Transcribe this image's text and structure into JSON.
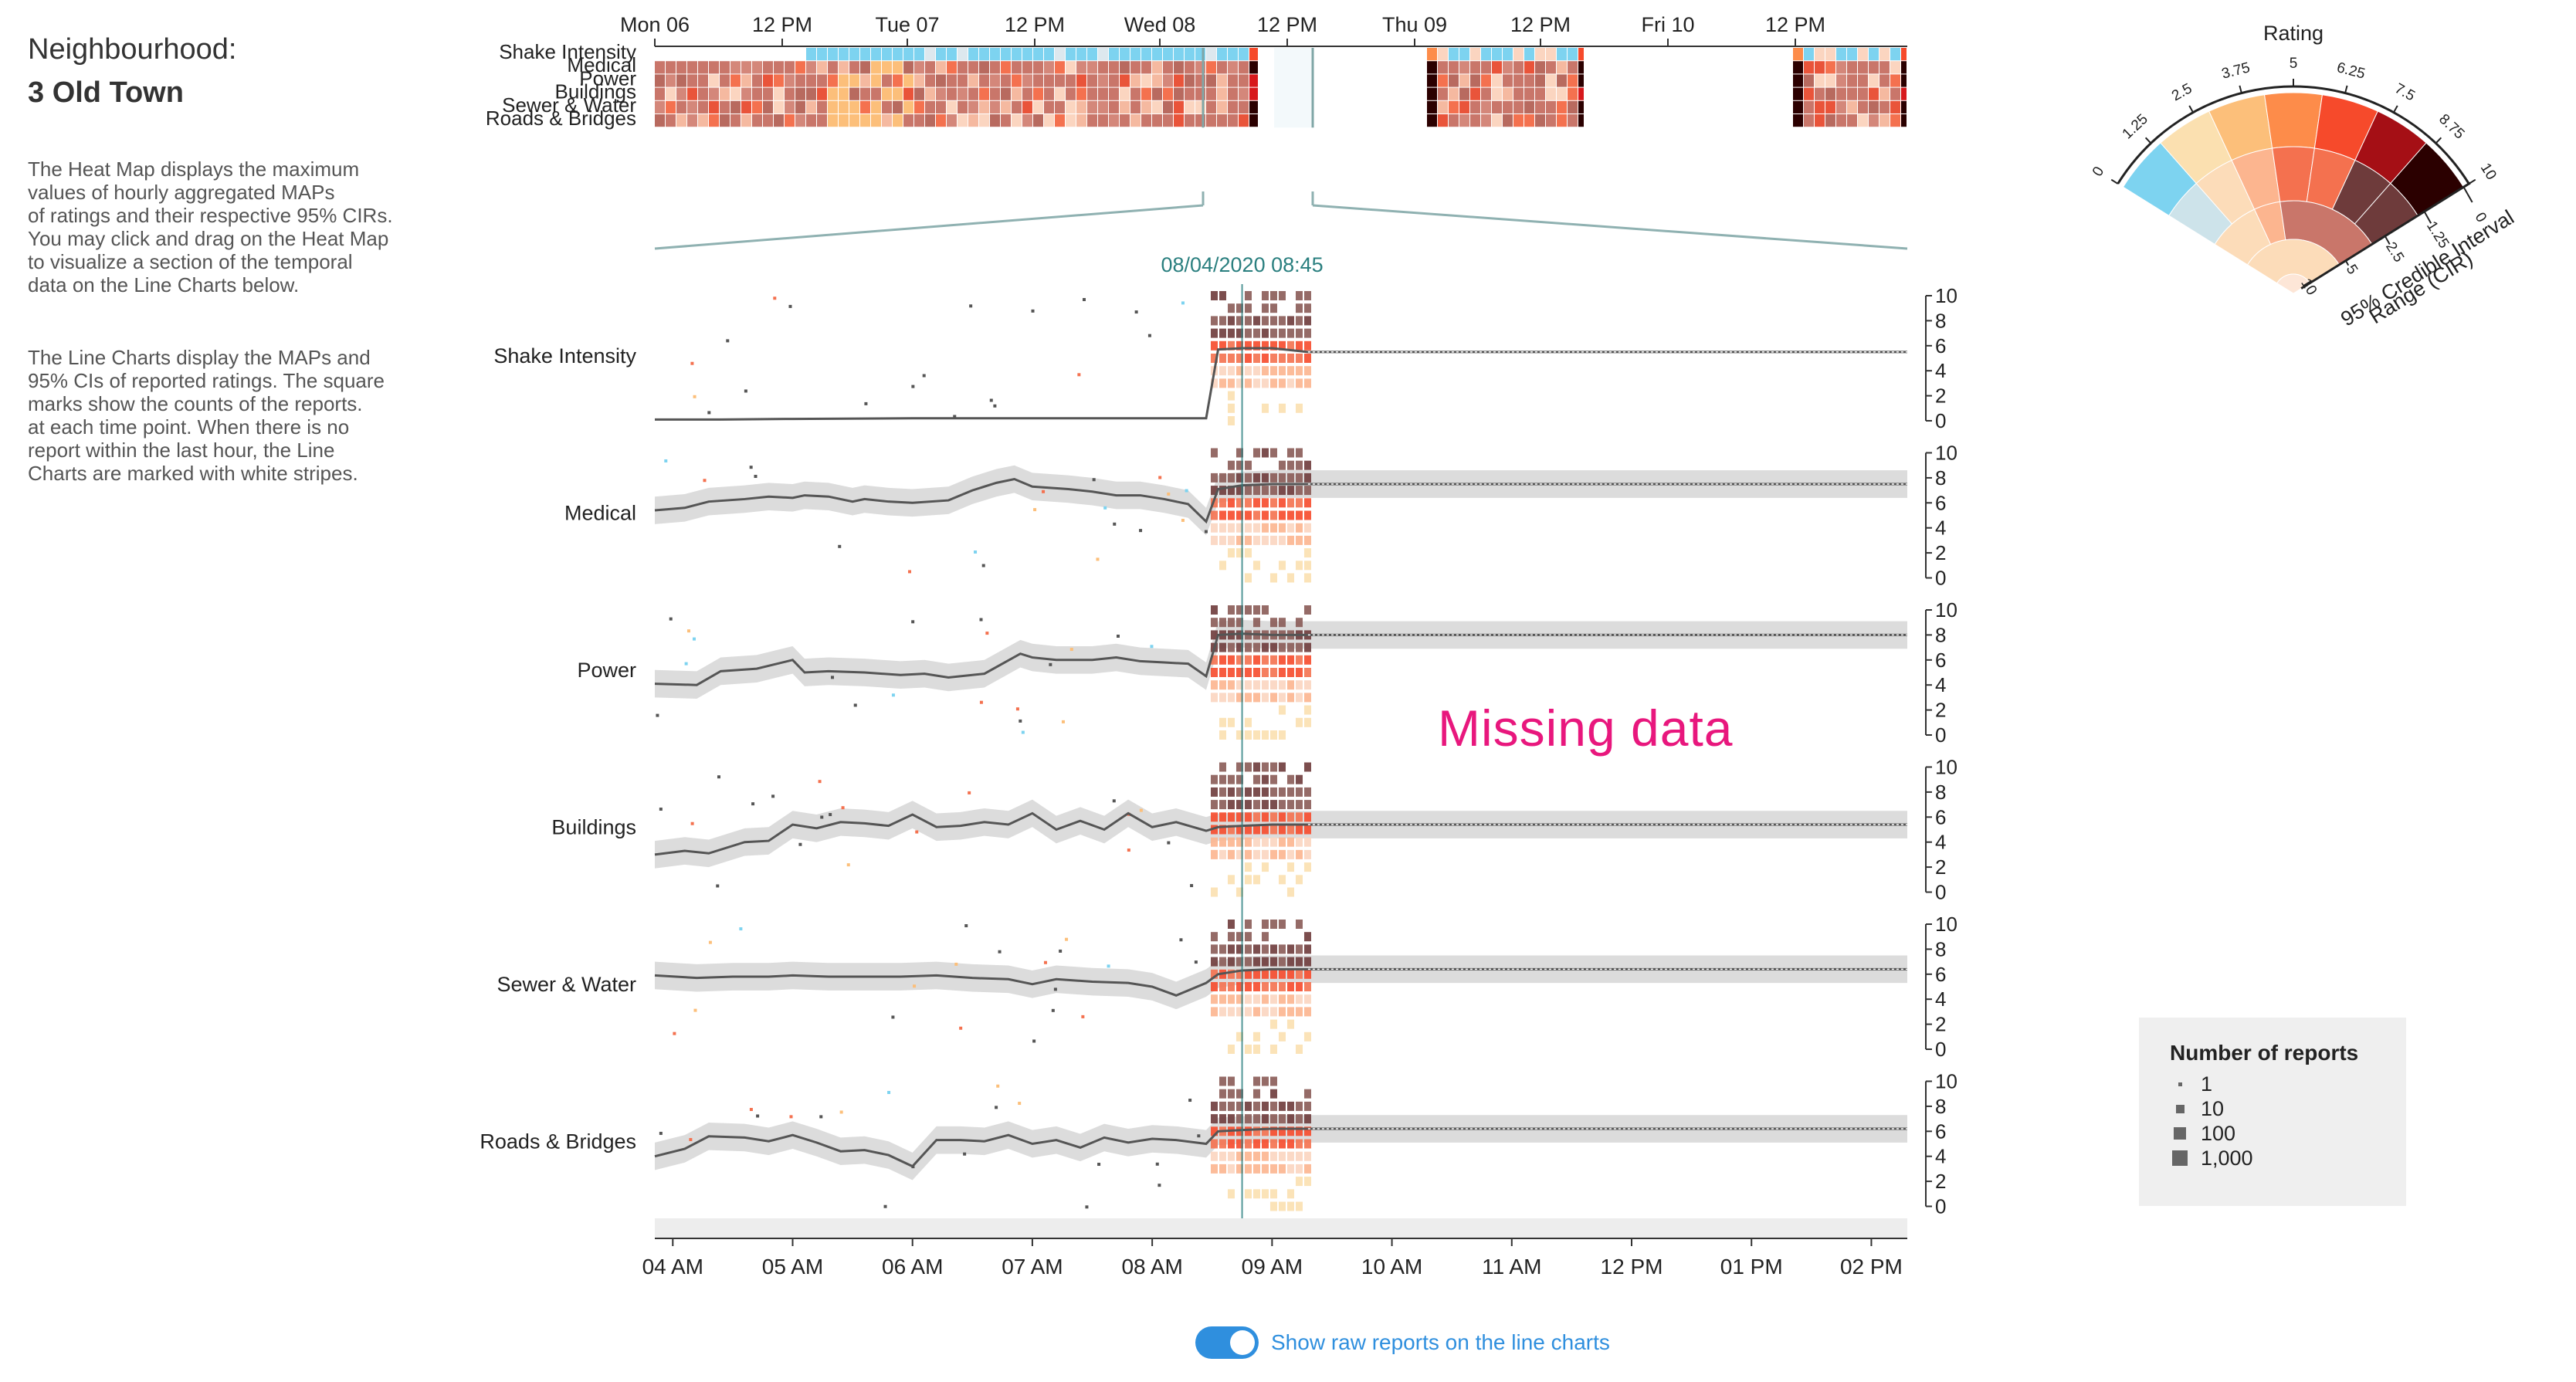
{
  "sidebar": {
    "neighbourhood_label": "Neighbourhood:",
    "neighbourhood_name": "3 Old Town",
    "heatmap_description": "The Heat Map displays the maximum\nvalues of hourly aggregated MAPs\nof ratings and their respective 95% CIRs.\nYou may click and drag on the Heat Map\nto visualize a section of the temporal\ndata on the Line Charts below.",
    "linechart_description": "The Line Charts display the MAPs and\n95% CIs of reported ratings. The square\nmarks show the counts of the reports.\nat each time point. When there is no\nreport within the last hour, the Line\nCharts are marked with white stripes."
  },
  "colors": {
    "rating_palette": [
      "#7dd3f0",
      "#fbe0b0",
      "#fcbf7a",
      "#fd8c4a",
      "#f64a2b",
      "#d7191c",
      "#a50f15",
      "#67000d",
      "#2b0000"
    ],
    "cir_blend": [
      "#cde3ea",
      "#fcdcb9",
      "#fcb58f",
      "#f4714f",
      "#c9766a",
      "#8a5b57",
      "#6e3b3b"
    ],
    "cursor_line": "#2a7f7f",
    "band_fill": "#dcdcdc",
    "map_line": "#555555",
    "missing_text": "#e8177d",
    "toggle_accent": "#2f8fde"
  },
  "heatmap": {
    "day_labels": [
      "Mon 06",
      "12 PM",
      "Tue 07",
      "12 PM",
      "Wed 08",
      "12 PM",
      "Thu 09",
      "12 PM",
      "Fri 10",
      "12 PM"
    ],
    "row_labels": [
      "Shake Intensity",
      "Medical",
      "Power",
      "Buildings",
      "Sewer & Water",
      "Roads & Bridges"
    ],
    "selection_label": "08/04/2020 08:45"
  },
  "chart_data": {
    "type": "line",
    "title": "",
    "x_ticks": [
      "04 AM",
      "05 AM",
      "06 AM",
      "07 AM",
      "08 AM",
      "09 AM",
      "10 AM",
      "11 AM",
      "12 PM",
      "01 PM",
      "02 PM"
    ],
    "y_ticks": [
      "10",
      "8",
      "6",
      "4",
      "2",
      "0"
    ],
    "ylim": [
      0,
      10
    ],
    "data_end_hour": 9.3,
    "cursor_hour": 8.75,
    "series": [
      {
        "name": "Shake Intensity",
        "x": [
          3.85,
          4.4,
          5.0,
          6.0,
          7.0,
          8.0,
          8.45,
          8.55,
          8.75,
          9.0,
          9.3,
          14.3
        ],
        "y": [
          0.1,
          0.1,
          0.15,
          0.2,
          0.2,
          0.2,
          0.2,
          5.7,
          5.8,
          5.8,
          5.5,
          5.5
        ]
      },
      {
        "name": "Medical",
        "x": [
          3.85,
          4.1,
          4.3,
          4.6,
          4.8,
          5.0,
          5.1,
          5.3,
          5.5,
          5.6,
          5.8,
          6.0,
          6.3,
          6.5,
          6.7,
          6.85,
          7.0,
          7.3,
          7.5,
          7.7,
          7.9,
          8.1,
          8.3,
          8.45,
          8.55,
          8.75,
          9.0,
          9.3,
          14.3
        ],
        "y": [
          5.4,
          5.6,
          6.1,
          6.3,
          6.5,
          6.4,
          6.6,
          6.5,
          6.1,
          6.3,
          6.1,
          6.0,
          6.2,
          7.0,
          7.6,
          7.9,
          7.3,
          7.1,
          6.9,
          6.6,
          6.6,
          6.3,
          5.9,
          4.5,
          7.1,
          7.4,
          7.5,
          7.5,
          7.5
        ]
      },
      {
        "name": "Power",
        "x": [
          3.85,
          4.2,
          4.4,
          4.7,
          5.0,
          5.1,
          5.3,
          5.6,
          5.9,
          6.1,
          6.3,
          6.6,
          6.9,
          7.0,
          7.2,
          7.5,
          7.7,
          7.9,
          8.1,
          8.3,
          8.45,
          8.55,
          8.75,
          9.0,
          9.3,
          14.3
        ],
        "y": [
          4.1,
          4.0,
          5.1,
          5.3,
          6.0,
          5.0,
          5.1,
          5.0,
          4.8,
          4.9,
          4.6,
          4.9,
          6.5,
          6.2,
          6.0,
          6.0,
          6.2,
          5.9,
          5.8,
          5.7,
          4.7,
          8.0,
          8.1,
          8.0,
          8.0,
          8.0
        ]
      },
      {
        "name": "Buildings",
        "x": [
          3.85,
          4.1,
          4.3,
          4.6,
          4.8,
          5.0,
          5.2,
          5.4,
          5.6,
          5.8,
          6.0,
          6.2,
          6.4,
          6.6,
          6.8,
          7.0,
          7.2,
          7.4,
          7.6,
          7.8,
          8.0,
          8.2,
          8.45,
          8.55,
          8.75,
          9.0,
          9.3,
          14.3
        ],
        "y": [
          3.0,
          3.3,
          3.1,
          4.0,
          4.1,
          5.4,
          5.1,
          5.6,
          5.5,
          5.3,
          6.2,
          5.2,
          5.3,
          5.6,
          5.4,
          6.3,
          5.0,
          5.7,
          5.0,
          6.3,
          5.2,
          5.6,
          4.9,
          5.2,
          5.3,
          5.4,
          5.4,
          5.4
        ]
      },
      {
        "name": "Sewer & Water",
        "x": [
          3.85,
          4.2,
          4.5,
          4.8,
          5.0,
          5.3,
          5.6,
          5.9,
          6.2,
          6.5,
          6.8,
          7.0,
          7.2,
          7.5,
          7.8,
          8.0,
          8.2,
          8.45,
          8.55,
          8.75,
          9.0,
          9.3,
          14.3
        ],
        "y": [
          5.9,
          5.7,
          5.8,
          5.8,
          5.9,
          5.8,
          5.8,
          5.8,
          5.9,
          5.7,
          5.6,
          5.2,
          5.6,
          5.4,
          5.3,
          5.0,
          4.3,
          5.3,
          6.0,
          6.3,
          6.4,
          6.4,
          6.4
        ]
      },
      {
        "name": "Roads & Bridges",
        "x": [
          3.85,
          4.1,
          4.3,
          4.6,
          4.8,
          5.0,
          5.2,
          5.4,
          5.6,
          5.8,
          6.0,
          6.2,
          6.4,
          6.6,
          6.8,
          7.0,
          7.2,
          7.4,
          7.6,
          7.8,
          8.0,
          8.2,
          8.45,
          8.55,
          8.75,
          9.0,
          9.3,
          14.3
        ],
        "y": [
          4.0,
          4.6,
          5.6,
          5.5,
          5.2,
          5.7,
          5.1,
          4.4,
          4.5,
          4.1,
          3.2,
          5.3,
          5.3,
          5.2,
          5.7,
          5.0,
          5.3,
          4.7,
          5.5,
          5.1,
          5.4,
          5.3,
          5.0,
          6.0,
          6.1,
          6.2,
          6.2,
          6.2
        ]
      }
    ]
  },
  "annotation": {
    "missing_data": "Missing data"
  },
  "rating_legend": {
    "title": "Rating",
    "scale_labels": [
      "0",
      "1.25",
      "2.5",
      "3.75",
      "5",
      "6.25",
      "7.5",
      "8.75",
      "10"
    ],
    "cir_labels": [
      "0",
      "1.25",
      "2.5",
      "5",
      "10"
    ],
    "cir_title_line1": "95% Credible Interval",
    "cir_title_line2": "Range (CIR)"
  },
  "reports_legend": {
    "title": "Number of reports",
    "items": [
      {
        "label": "1",
        "mark_size": 5
      },
      {
        "label": "10",
        "mark_size": 11
      },
      {
        "label": "100",
        "mark_size": 16
      },
      {
        "label": "1,000",
        "mark_size": 20
      }
    ]
  },
  "toggle": {
    "label": "Show raw reports on the line charts",
    "on": true
  }
}
